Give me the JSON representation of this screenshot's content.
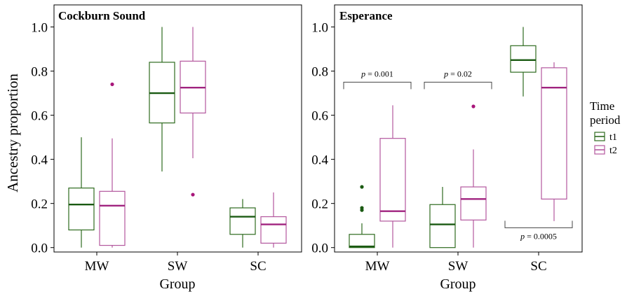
{
  "chart_data": [
    {
      "type": "boxplot",
      "title": "Cockburn Sound",
      "xlabel": "Group",
      "ylabel": "Ancestry proportion",
      "ylim": [
        -0.02,
        1.1
      ],
      "yticks": [
        "0.0",
        "0.2",
        "0.4",
        "0.6",
        "0.8",
        "1.0"
      ],
      "categories": [
        "MW",
        "SW",
        "SC"
      ],
      "series": [
        {
          "name": "t1",
          "boxes": [
            {
              "category": "MW",
              "min": 0.0,
              "q1": 0.08,
              "median": 0.195,
              "q3": 0.27,
              "max": 0.5,
              "outliers": []
            },
            {
              "category": "SW",
              "min": 0.345,
              "q1": 0.565,
              "median": 0.7,
              "q3": 0.84,
              "max": 1.0,
              "outliers": []
            },
            {
              "category": "SC",
              "min": 0.0,
              "q1": 0.06,
              "median": 0.14,
              "q3": 0.18,
              "max": 0.22,
              "outliers": []
            }
          ]
        },
        {
          "name": "t2",
          "boxes": [
            {
              "category": "MW",
              "min": 0.0,
              "q1": 0.01,
              "median": 0.19,
              "q3": 0.255,
              "max": 0.495,
              "outliers": [
                0.74
              ]
            },
            {
              "category": "SW",
              "min": 0.405,
              "q1": 0.61,
              "median": 0.725,
              "q3": 0.845,
              "max": 1.0,
              "outliers": [
                0.24
              ]
            },
            {
              "category": "SC",
              "min": 0.0,
              "q1": 0.02,
              "median": 0.105,
              "q3": 0.14,
              "max": 0.25,
              "outliers": []
            }
          ]
        }
      ],
      "annotations": []
    },
    {
      "type": "boxplot",
      "title": "Esperance",
      "xlabel": "Group",
      "ylabel": "",
      "ylim": [
        -0.02,
        1.1
      ],
      "yticks": [
        "0.0",
        "0.2",
        "0.4",
        "0.6",
        "0.8",
        "1.0"
      ],
      "categories": [
        "MW",
        "SW",
        "SC"
      ],
      "series": [
        {
          "name": "t1",
          "boxes": [
            {
              "category": "MW",
              "min": 0.0,
              "q1": 0.0,
              "median": 0.005,
              "q3": 0.06,
              "max": 0.11,
              "outliers": [
                0.17,
                0.18,
                0.275
              ]
            },
            {
              "category": "SW",
              "min": 0.0,
              "q1": 0.0,
              "median": 0.105,
              "q3": 0.195,
              "max": 0.275,
              "outliers": []
            },
            {
              "category": "SC",
              "min": 0.685,
              "q1": 0.795,
              "median": 0.85,
              "q3": 0.915,
              "max": 1.0,
              "outliers": []
            }
          ]
        },
        {
          "name": "t2",
          "boxes": [
            {
              "category": "MW",
              "min": 0.0,
              "q1": 0.12,
              "median": 0.165,
              "q3": 0.495,
              "max": 0.645,
              "outliers": []
            },
            {
              "category": "SW",
              "min": 0.0,
              "q1": 0.125,
              "median": 0.22,
              "q3": 0.275,
              "max": 0.445,
              "outliers": [
                0.64
              ]
            },
            {
              "category": "SC",
              "min": 0.12,
              "q1": 0.22,
              "median": 0.725,
              "q3": 0.815,
              "max": 0.84,
              "outliers": []
            }
          ]
        }
      ],
      "annotations": [
        {
          "italic": "p",
          "rest": " = 0.001",
          "category": "MW",
          "y": 0.75,
          "side": "above"
        },
        {
          "italic": "p",
          "rest": " = 0.02",
          "category": "SW",
          "y": 0.75,
          "side": "above"
        },
        {
          "italic": "p",
          "rest": " = 0.0005",
          "category": "SC",
          "y": 0.09,
          "side": "below"
        }
      ]
    }
  ],
  "legend": {
    "title_line1": "Time",
    "title_line2": "period",
    "items": [
      {
        "label": "t1",
        "color": "#2e6b1f"
      },
      {
        "label": "t2",
        "color": "#b3589e"
      }
    ]
  },
  "colors": {
    "t1_box": "#2e6b1f",
    "t1_median": "#1a5a12",
    "t2_box": "#b3589e",
    "t2_median": "#a0237f",
    "t2_outlier": "#a8167a",
    "t1_outlier": "#1a5a12"
  }
}
